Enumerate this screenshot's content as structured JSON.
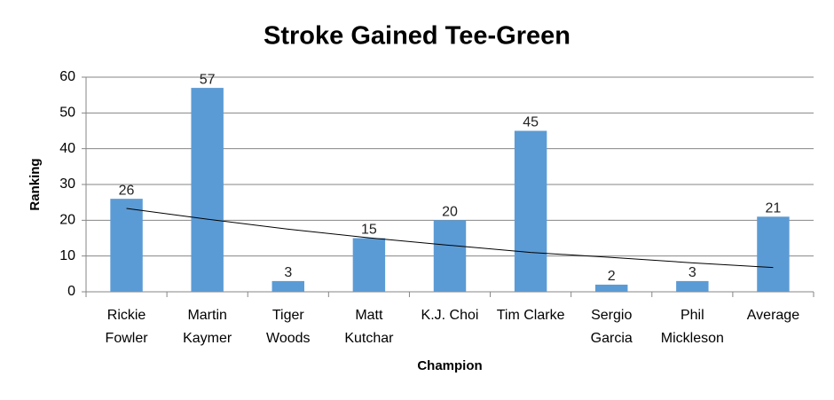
{
  "chart_data": {
    "type": "bar",
    "title": "Stroke Gained Tee-Green",
    "x_label": "Champion",
    "y_label": "Ranking",
    "categories": [
      "Rickie Fowler",
      "Martin Kaymer",
      "Tiger Woods",
      "Matt Kutchar",
      "K.J. Choi",
      "Tim Clarke",
      "Sergio Garcia",
      "Phil Mickleson",
      "Average"
    ],
    "values": [
      26,
      57,
      3,
      15,
      20,
      45,
      2,
      3,
      21
    ],
    "color": "#5b9bd5",
    "trendline": {
      "color": "#000000",
      "values": [
        23.3,
        20.3,
        17.5,
        15.1,
        13,
        11,
        9.6,
        8.1,
        6.8
      ]
    },
    "ylim": [
      0,
      60
    ],
    "yticks": [
      0,
      10,
      20,
      30,
      40,
      50,
      60
    ],
    "grid": true
  }
}
